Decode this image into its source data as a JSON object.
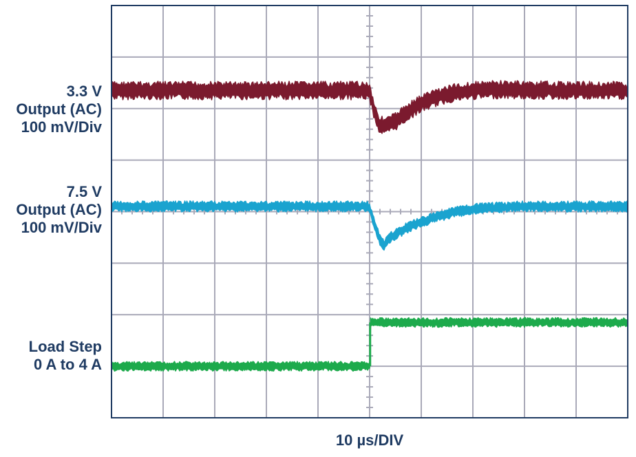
{
  "chart_data": {
    "type": "line",
    "title": "",
    "xlabel": "10 µs/DIV",
    "ylabel": "",
    "grid": true,
    "divisions": {
      "x": 10,
      "y": 8
    },
    "center_markers": true,
    "x_unit": "div",
    "xlim": [
      0,
      10
    ],
    "ylim": [
      0,
      8
    ],
    "series": [
      {
        "name": "3.3 V Output (AC) 100 mV/Div",
        "label_lines": [
          "3.3 V",
          "Output (AC)",
          "100 mV/Div"
        ],
        "color": "#7b1a2e",
        "band_width_div": 0.25,
        "x": [
          0,
          4.95,
          5.0,
          5.08,
          5.18,
          5.3,
          5.5,
          5.75,
          6.0,
          6.3,
          6.6,
          7.0,
          7.5,
          8.0,
          9.0,
          10.0
        ],
        "y": [
          6.35,
          6.35,
          6.32,
          6.0,
          5.7,
          5.65,
          5.75,
          5.95,
          6.1,
          6.22,
          6.3,
          6.35,
          6.37,
          6.36,
          6.35,
          6.35
        ]
      },
      {
        "name": "7.5 V Output (AC) 100 mV/Div",
        "label_lines": [
          "7.5 V",
          "Output (AC)",
          "100 mV/Div"
        ],
        "color": "#1aa3cf",
        "band_width_div": 0.15,
        "x": [
          0,
          4.95,
          5.0,
          5.1,
          5.2,
          5.28,
          5.4,
          5.6,
          5.8,
          6.0,
          6.3,
          6.6,
          7.0,
          7.5,
          8.0,
          9.0,
          10.0
        ],
        "y": [
          4.1,
          4.1,
          4.06,
          3.75,
          3.45,
          3.35,
          3.5,
          3.62,
          3.72,
          3.8,
          3.9,
          3.98,
          4.05,
          4.08,
          4.1,
          4.1,
          4.1
        ],
        "dashed_baseline": true
      },
      {
        "name": "Load Step 0 A to 4 A",
        "label_lines": [
          "Load Step",
          "0 A to 4 A"
        ],
        "color": "#1daa4c",
        "band_width_div": 0.13,
        "x": [
          0,
          4.99,
          5.0,
          5.01,
          10.0
        ],
        "y": [
          1.0,
          1.0,
          1.0,
          1.85,
          1.85
        ]
      }
    ]
  },
  "colors": {
    "grid": "#a9a9b8",
    "frame": "#1f3b62",
    "label_text": "#1f3b62",
    "background": "#ffffff"
  }
}
